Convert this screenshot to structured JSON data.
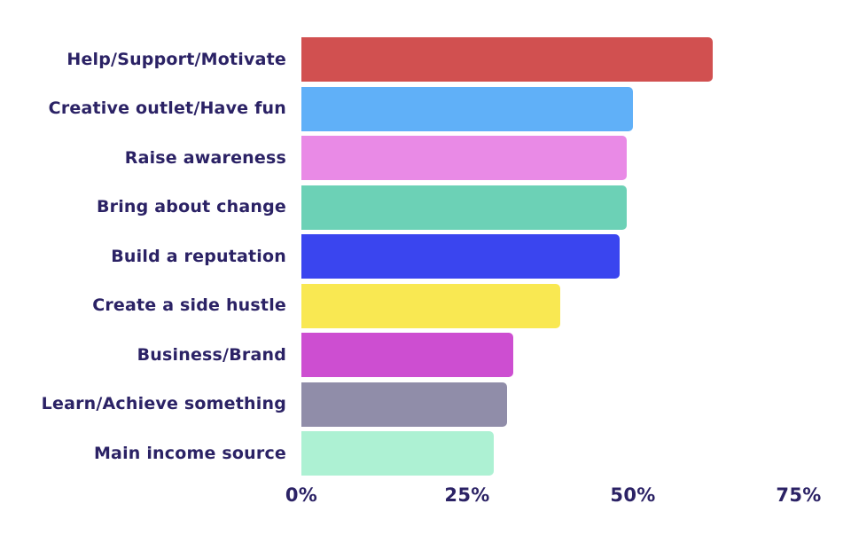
{
  "chart_data": {
    "type": "bar",
    "orientation": "horizontal",
    "title": "",
    "xlabel": "",
    "ylabel": "",
    "categories": [
      "Help/Support/Motivate",
      "Creative outlet/Have fun",
      "Raise awareness",
      "Bring about change",
      "Build a reputation",
      "Create a side hustle",
      "Business/Brand",
      "Learn/Achieve something",
      "Main income source"
    ],
    "values": [
      62,
      50,
      49,
      49,
      48,
      39,
      32,
      31,
      29
    ],
    "unit": "%",
    "bar_colors": [
      "#d15050",
      "#60b0f8",
      "#e98ae6",
      "#6cd1b6",
      "#3a45ef",
      "#f9e852",
      "#cd4ed1",
      "#908da9",
      "#adf1d3"
    ],
    "x_ticks": [
      "0%",
      "25%",
      "50%",
      "75%"
    ],
    "x_tick_values": [
      0,
      25,
      50,
      75
    ],
    "xlim": [
      0,
      75
    ],
    "grid": false,
    "legend": false,
    "background_color": "#ffffff",
    "text_color": "#2b2265"
  }
}
